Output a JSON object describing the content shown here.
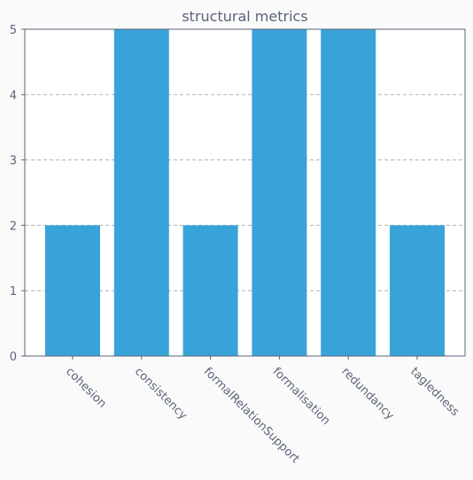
{
  "chart_data": {
    "type": "bar",
    "title": "structural metrics",
    "xlabel": "",
    "ylabel": "",
    "categories": [
      "cohesion",
      "consistency",
      "formalRelationSupport",
      "formalisation",
      "redundancy",
      "tagledness"
    ],
    "values": [
      2,
      5,
      2,
      5,
      5,
      2
    ],
    "ylim": [
      0,
      5
    ],
    "yticks": [
      0,
      1,
      2,
      3,
      4,
      5
    ],
    "grid": "y-dashed",
    "legend": "none",
    "bar_color": "#38a3d9",
    "text_color": "#5a6478",
    "grid_color": "#b0b0b0",
    "axis_color": "#5a6478",
    "background": "#fafafa",
    "plot_background": "#ffffff"
  }
}
